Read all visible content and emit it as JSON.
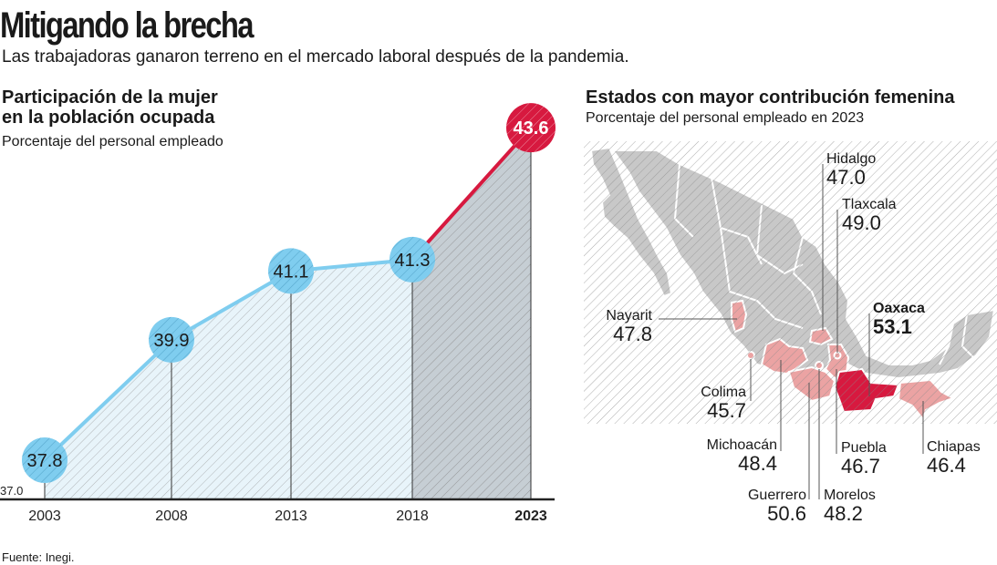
{
  "header": {
    "title": "Mitigando la brecha",
    "subtitle": "Las trabajadoras ganaron terreno en el mercado laboral después de la pandemia."
  },
  "chart_data": [
    {
      "type": "line",
      "title": "Participación de la mujer en la población ocupada",
      "title_line1": "Participación de la mujer",
      "title_line2": "en la población ocupada",
      "subtitle": "Porcentaje del personal empleado",
      "categories": [
        "2003",
        "2008",
        "2013",
        "2018",
        "2023"
      ],
      "values": [
        37.8,
        39.9,
        41.1,
        41.3,
        43.6
      ],
      "value_labels": [
        "37.8",
        "39.9",
        "41.1",
        "41.3",
        "43.6"
      ],
      "baseline_label": "37.0",
      "ylim": [
        37.0,
        43.6
      ],
      "highlight": "2023",
      "colors": {
        "line": "#7fcdef",
        "highlight": "#d7193f",
        "area": "#e8f4fa",
        "area_highlight": "#c6ced4"
      }
    },
    {
      "type": "map",
      "title": "Estados con mayor contribución femenina",
      "subtitle": "Porcentaje del personal empleado en 2023",
      "states": [
        {
          "name": "Hidalgo",
          "value": "47.0"
        },
        {
          "name": "Tlaxcala",
          "value": "49.0"
        },
        {
          "name": "Nayarit",
          "value": "47.8"
        },
        {
          "name": "Oaxaca",
          "value": "53.1",
          "highlight": true
        },
        {
          "name": "Colima",
          "value": "45.7"
        },
        {
          "name": "Michoacán",
          "value": "48.4"
        },
        {
          "name": "Puebla",
          "value": "46.7"
        },
        {
          "name": "Chiapas",
          "value": "46.4"
        },
        {
          "name": "Guerrero",
          "value": "50.6"
        },
        {
          "name": "Morelos",
          "value": "48.2"
        }
      ],
      "colors": {
        "base": "#c8c8c8",
        "highlighted": "#eba3a3",
        "top": "#d7193f"
      }
    }
  ],
  "footer": {
    "source": "Fuente: Inegi."
  }
}
